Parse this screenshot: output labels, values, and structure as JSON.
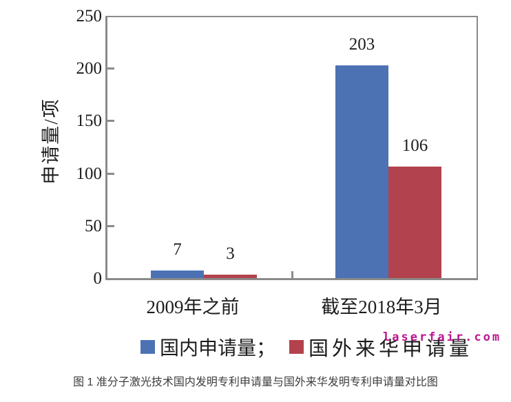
{
  "figure": {
    "caption": "图 1 准分子激光技术国内发明专利申请量与国外来华发明专利申请量对比图"
  },
  "watermark": {
    "text": "laserfair.com",
    "color": "#bb1691"
  },
  "chart_data": {
    "type": "bar",
    "title": "",
    "categories": [
      "2009年之前",
      "截至2018年3月"
    ],
    "series": [
      {
        "name": "国内申请量",
        "color": "#4c72b4",
        "values": [
          7,
          203
        ]
      },
      {
        "name": "国外来华申请量",
        "color": "#b2424d",
        "values": [
          3,
          106
        ]
      }
    ],
    "xlabel": "",
    "ylabel": "申请量/项",
    "ylim": [
      0,
      250
    ],
    "yticks": [
      0,
      50,
      100,
      150,
      200,
      250
    ],
    "grid": false,
    "data_labels": true,
    "legend_position": "bottom",
    "axis_color": "#8a8a8a"
  },
  "legend": {
    "items": [
      {
        "label": "国内申请量；",
        "color": "#4c72b4"
      },
      {
        "label": "国外来华申请量",
        "color": "#b2424d"
      }
    ]
  }
}
